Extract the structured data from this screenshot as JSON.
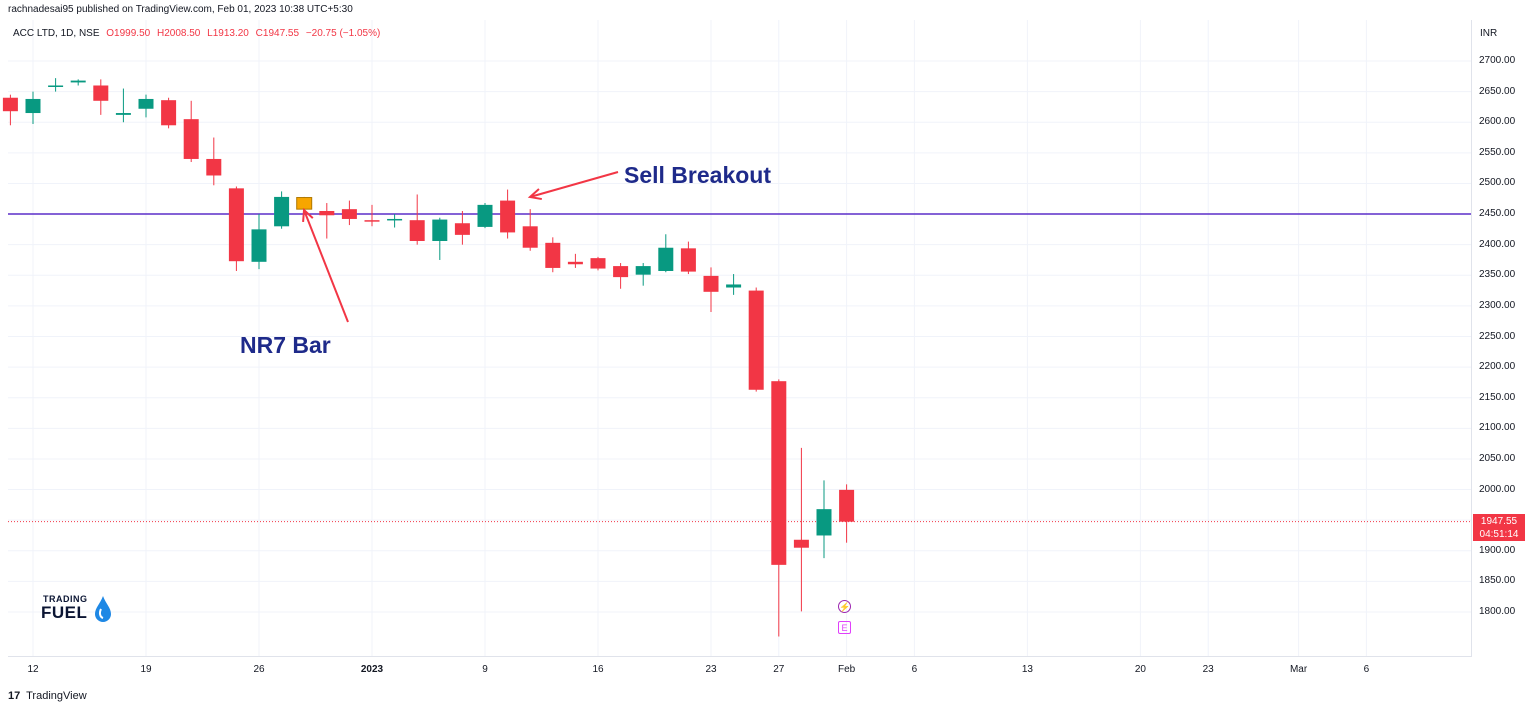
{
  "header": {
    "published": "rachnadesai95 published on TradingView.com, Feb 01, 2023 10:38 UTC+5:30",
    "symbol": "ACC LTD, 1D, NSE",
    "open": "O1999.50",
    "high": "H2008.50",
    "low": "L1913.20",
    "close": "C1947.55",
    "change": "−20.75 (−1.05%)"
  },
  "currency": "INR",
  "last_price": {
    "price": "1947.55",
    "countdown": "04:51:14"
  },
  "annotations": {
    "sell_breakout": "Sell Breakout",
    "nr7_bar": "NR7 Bar"
  },
  "logo": {
    "line1": "TRADING",
    "line2": "FUEL"
  },
  "events": {
    "bolt": "⚡",
    "earnings": "E"
  },
  "footer": {
    "mark": "17",
    "brand": "TradingView"
  },
  "colors": {
    "up": "#089981",
    "down": "#f23645",
    "nr7": "#f7a600",
    "level": "#5b2fc9",
    "annotation": "#1e2a8a",
    "arrow": "#f23645"
  },
  "chart_data": {
    "type": "candlestick",
    "y_ticks": [
      "2700.00",
      "2650.00",
      "2600.00",
      "2550.00",
      "2500.00",
      "2450.00",
      "2400.00",
      "2350.00",
      "2300.00",
      "2250.00",
      "2200.00",
      "2150.00",
      "2100.00",
      "2050.00",
      "2000.00",
      "1950.00",
      "1900.00",
      "1850.00",
      "1800.00"
    ],
    "x_ticks": [
      {
        "label": "12",
        "day": 0
      },
      {
        "label": "19",
        "day": 5
      },
      {
        "label": "26",
        "day": 10
      },
      {
        "label": "2023",
        "day": 15,
        "bold": true
      },
      {
        "label": "9",
        "day": 20
      },
      {
        "label": "16",
        "day": 25
      },
      {
        "label": "23",
        "day": 30
      },
      {
        "label": "27",
        "day": 33
      },
      {
        "label": "Feb",
        "day": 36
      },
      {
        "label": "6",
        "day": 39
      },
      {
        "label": "13",
        "day": 44
      },
      {
        "label": "20",
        "day": 49
      },
      {
        "label": "23",
        "day": 52
      },
      {
        "label": "Mar",
        "day": 56
      },
      {
        "label": "6",
        "day": 59
      }
    ],
    "horizontal_level": 2450,
    "last_price": 1947.55,
    "candles": [
      {
        "day": -1,
        "o": 2640,
        "h": 2645,
        "l": 2595,
        "c": 2618
      },
      {
        "day": 0,
        "o": 2615,
        "h": 2650,
        "l": 2597,
        "c": 2638
      },
      {
        "day": 1,
        "o": 2660,
        "h": 2672,
        "l": 2650,
        "c": 2660
      },
      {
        "day": 2,
        "o": 2665,
        "h": 2670,
        "l": 2660,
        "c": 2668
      },
      {
        "day": 3,
        "o": 2660,
        "h": 2670,
        "l": 2612,
        "c": 2635
      },
      {
        "day": 4,
        "o": 2612,
        "h": 2655,
        "l": 2600,
        "c": 2615
      },
      {
        "day": 5,
        "o": 2622,
        "h": 2645,
        "l": 2608,
        "c": 2638
      },
      {
        "day": 6,
        "o": 2636,
        "h": 2640,
        "l": 2590,
        "c": 2595
      },
      {
        "day": 7,
        "o": 2605,
        "h": 2635,
        "l": 2535,
        "c": 2540
      },
      {
        "day": 8,
        "o": 2540,
        "h": 2575,
        "l": 2497,
        "c": 2513
      },
      {
        "day": 9,
        "o": 2492,
        "h": 2495,
        "l": 2357,
        "c": 2373
      },
      {
        "day": 10,
        "o": 2372,
        "h": 2450,
        "l": 2360,
        "c": 2425
      },
      {
        "day": 11,
        "o": 2430,
        "h": 2487,
        "l": 2426,
        "c": 2478
      },
      {
        "day": 12,
        "o": 2477,
        "h": 2478,
        "l": 2455,
        "c": 2458,
        "nr7": true
      },
      {
        "day": 13,
        "o": 2455,
        "h": 2468,
        "l": 2410,
        "c": 2448
      },
      {
        "day": 14,
        "o": 2458,
        "h": 2472,
        "l": 2432,
        "c": 2442
      },
      {
        "day": 15,
        "o": 2440,
        "h": 2465,
        "l": 2430,
        "c": 2439
      },
      {
        "day": 16,
        "o": 2442,
        "h": 2450,
        "l": 2428,
        "c": 2442
      },
      {
        "day": 17,
        "o": 2440,
        "h": 2482,
        "l": 2400,
        "c": 2406
      },
      {
        "day": 18,
        "o": 2406,
        "h": 2444,
        "l": 2375,
        "c": 2441
      },
      {
        "day": 19,
        "o": 2435,
        "h": 2455,
        "l": 2400,
        "c": 2416
      },
      {
        "day": 20,
        "o": 2429,
        "h": 2468,
        "l": 2427,
        "c": 2465
      },
      {
        "day": 21,
        "o": 2472,
        "h": 2490,
        "l": 2410,
        "c": 2420
      },
      {
        "day": 22,
        "o": 2430,
        "h": 2458,
        "l": 2390,
        "c": 2395
      },
      {
        "day": 23,
        "o": 2403,
        "h": 2412,
        "l": 2355,
        "c": 2362
      },
      {
        "day": 24,
        "o": 2372,
        "h": 2385,
        "l": 2362,
        "c": 2368
      },
      {
        "day": 25,
        "o": 2378,
        "h": 2380,
        "l": 2358,
        "c": 2361
      },
      {
        "day": 26,
        "o": 2365,
        "h": 2370,
        "l": 2328,
        "c": 2347
      },
      {
        "day": 27,
        "o": 2351,
        "h": 2370,
        "l": 2333,
        "c": 2365
      },
      {
        "day": 28,
        "o": 2357,
        "h": 2417,
        "l": 2355,
        "c": 2395
      },
      {
        "day": 29,
        "o": 2394,
        "h": 2405,
        "l": 2352,
        "c": 2356
      },
      {
        "day": 30,
        "o": 2349,
        "h": 2363,
        "l": 2290,
        "c": 2323
      },
      {
        "day": 31,
        "o": 2330,
        "h": 2352,
        "l": 2318,
        "c": 2335
      },
      {
        "day": 32,
        "o": 2325,
        "h": 2330,
        "l": 2160,
        "c": 2163
      },
      {
        "day": 33,
        "o": 2177,
        "h": 2180,
        "l": 1760,
        "c": 1877
      },
      {
        "day": 34,
        "o": 1918,
        "h": 2068,
        "l": 1801,
        "c": 1905
      },
      {
        "day": 35,
        "o": 1925,
        "h": 2015,
        "l": 1888,
        "c": 1968
      },
      {
        "day": 36,
        "o": 1999.5,
        "h": 2008.5,
        "l": 1913.2,
        "c": 1947.55
      }
    ]
  }
}
